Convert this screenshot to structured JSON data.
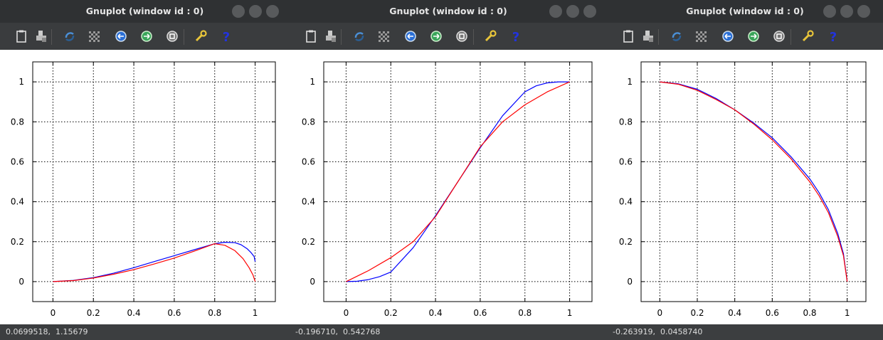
{
  "windows": [
    {
      "title": "Gnuplot (window id : 0)",
      "status": "0.0699518,  1.15679",
      "chart_data": {
        "type": "line",
        "title": "",
        "xlabel": "",
        "ylabel": "",
        "xlim": [
          -0.1,
          1.1
        ],
        "ylim": [
          -0.1,
          1.1
        ],
        "xticks": [
          "0",
          "0.2",
          "0.4",
          "0.6",
          "0.8",
          "1"
        ],
        "yticks": [
          "0",
          "0.2",
          "0.4",
          "0.6",
          "0.8",
          "1"
        ],
        "grid": true,
        "series": [
          {
            "color": "#0000ff",
            "x": [
              0,
              0.1,
              0.2,
              0.3,
              0.4,
              0.5,
              0.6,
              0.7,
              0.75,
              0.8,
              0.85,
              0.9,
              0.93,
              0.96,
              0.98,
              0.995,
              1
            ],
            "y": [
              0,
              0.006,
              0.02,
              0.042,
              0.07,
              0.1,
              0.13,
              0.16,
              0.175,
              0.19,
              0.197,
              0.195,
              0.185,
              0.165,
              0.145,
              0.125,
              0.1
            ]
          },
          {
            "color": "#ff0000",
            "x": [
              0,
              0.1,
              0.2,
              0.3,
              0.4,
              0.5,
              0.6,
              0.7,
              0.8,
              0.85,
              0.9,
              0.94,
              0.97,
              0.99,
              1
            ],
            "y": [
              0,
              0.005,
              0.018,
              0.037,
              0.06,
              0.088,
              0.118,
              0.153,
              0.19,
              0.182,
              0.155,
              0.115,
              0.07,
              0.032,
              0
            ]
          }
        ]
      }
    },
    {
      "title": "Gnuplot (window id : 0)",
      "status": "-0.196710,  0.542768",
      "chart_data": {
        "type": "line",
        "title": "",
        "xlabel": "",
        "ylabel": "",
        "xlim": [
          -0.1,
          1.1
        ],
        "ylim": [
          -0.1,
          1.1
        ],
        "xticks": [
          "0",
          "0.2",
          "0.4",
          "0.6",
          "0.8",
          "1"
        ],
        "yticks": [
          "0",
          "0.2",
          "0.4",
          "0.6",
          "0.8",
          "1"
        ],
        "grid": true,
        "series": [
          {
            "color": "#0000ff",
            "x": [
              0,
              0.05,
              0.1,
              0.15,
              0.2,
              0.3,
              0.4,
              0.5,
              0.6,
              0.7,
              0.8,
              0.85,
              0.9,
              0.95,
              1
            ],
            "y": [
              0,
              0.002,
              0.01,
              0.025,
              0.048,
              0.17,
              0.33,
              0.5,
              0.67,
              0.83,
              0.95,
              0.98,
              0.995,
              1,
              1
            ]
          },
          {
            "color": "#ff0000",
            "x": [
              0,
              0.1,
              0.2,
              0.3,
              0.4,
              0.5,
              0.6,
              0.7,
              0.8,
              0.9,
              1
            ],
            "y": [
              0,
              0.055,
              0.12,
              0.2,
              0.325,
              0.5,
              0.675,
              0.8,
              0.885,
              0.95,
              1
            ]
          }
        ]
      }
    },
    {
      "title": "Gnuplot (window id : 0)",
      "status": "-0.263919,  0.0458740",
      "chart_data": {
        "type": "line",
        "title": "",
        "xlabel": "",
        "ylabel": "",
        "xlim": [
          -0.1,
          1.1
        ],
        "ylim": [
          -0.1,
          1.1
        ],
        "xticks": [
          "0",
          "0.2",
          "0.4",
          "0.6",
          "0.8",
          "1"
        ],
        "yticks": [
          "0",
          "0.2",
          "0.4",
          "0.6",
          "0.8",
          "1"
        ],
        "grid": true,
        "series": [
          {
            "color": "#0000ff",
            "x": [
              0,
              0.1,
              0.2,
              0.3,
              0.4,
              0.5,
              0.6,
              0.7,
              0.8,
              0.85,
              0.9,
              0.95,
              0.98,
              1
            ],
            "y": [
              1,
              0.99,
              0.963,
              0.917,
              0.86,
              0.795,
              0.72,
              0.625,
              0.515,
              0.445,
              0.36,
              0.24,
              0.14,
              0
            ]
          },
          {
            "color": "#ff0000",
            "x": [
              0,
              0.1,
              0.2,
              0.3,
              0.4,
              0.5,
              0.6,
              0.7,
              0.8,
              0.85,
              0.9,
              0.95,
              0.98,
              1
            ],
            "y": [
              1,
              0.988,
              0.958,
              0.912,
              0.86,
              0.79,
              0.71,
              0.615,
              0.5,
              0.43,
              0.345,
              0.225,
              0.13,
              0
            ]
          }
        ]
      }
    }
  ],
  "toolbar_icons": [
    "clipboard-icon",
    "print-icon",
    "replot-icon",
    "grid-icon",
    "previous-zoom-icon",
    "next-zoom-icon",
    "autoscale-icon",
    "settings-icon",
    "help-icon"
  ]
}
